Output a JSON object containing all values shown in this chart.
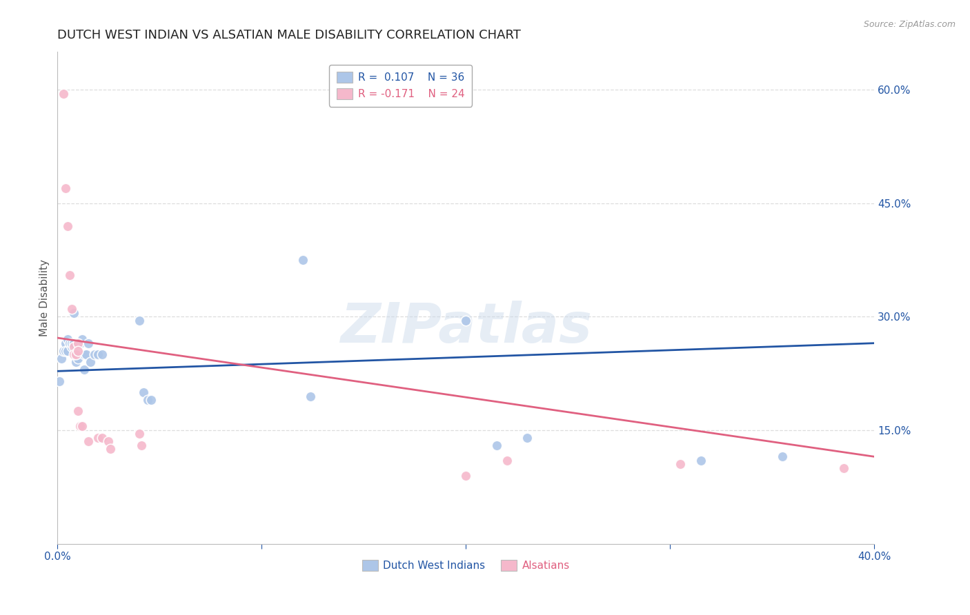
{
  "title": "DUTCH WEST INDIAN VS ALSATIAN MALE DISABILITY CORRELATION CHART",
  "source": "Source: ZipAtlas.com",
  "ylabel": "Male Disability",
  "xlim": [
    0.0,
    0.4
  ],
  "ylim": [
    0.0,
    0.65
  ],
  "xtick_positions": [
    0.0,
    0.1,
    0.2,
    0.3,
    0.4
  ],
  "xtick_labels": [
    "0.0%",
    "",
    "",
    "",
    "40.0%"
  ],
  "ytick_positions_right": [
    0.6,
    0.45,
    0.3,
    0.15
  ],
  "ytick_labels_right": [
    "60.0%",
    "45.0%",
    "30.0%",
    "15.0%"
  ],
  "watermark": "ZIPatlas",
  "blue_color": "#adc6e8",
  "pink_color": "#f5b8cb",
  "blue_line_color": "#2255a4",
  "pink_line_color": "#e06080",
  "blue_scatter": [
    [
      0.001,
      0.215
    ],
    [
      0.002,
      0.245
    ],
    [
      0.003,
      0.255
    ],
    [
      0.004,
      0.265
    ],
    [
      0.004,
      0.255
    ],
    [
      0.005,
      0.27
    ],
    [
      0.005,
      0.255
    ],
    [
      0.006,
      0.265
    ],
    [
      0.007,
      0.26
    ],
    [
      0.007,
      0.265
    ],
    [
      0.008,
      0.305
    ],
    [
      0.008,
      0.265
    ],
    [
      0.009,
      0.24
    ],
    [
      0.009,
      0.25
    ],
    [
      0.01,
      0.245
    ],
    [
      0.011,
      0.265
    ],
    [
      0.012,
      0.27
    ],
    [
      0.013,
      0.25
    ],
    [
      0.013,
      0.23
    ],
    [
      0.014,
      0.25
    ],
    [
      0.015,
      0.265
    ],
    [
      0.016,
      0.24
    ],
    [
      0.018,
      0.25
    ],
    [
      0.02,
      0.25
    ],
    [
      0.022,
      0.25
    ],
    [
      0.04,
      0.295
    ],
    [
      0.042,
      0.2
    ],
    [
      0.044,
      0.19
    ],
    [
      0.046,
      0.19
    ],
    [
      0.12,
      0.375
    ],
    [
      0.124,
      0.195
    ],
    [
      0.2,
      0.295
    ],
    [
      0.215,
      0.13
    ],
    [
      0.23,
      0.14
    ],
    [
      0.315,
      0.11
    ],
    [
      0.355,
      0.115
    ]
  ],
  "pink_scatter": [
    [
      0.003,
      0.595
    ],
    [
      0.004,
      0.47
    ],
    [
      0.005,
      0.42
    ],
    [
      0.006,
      0.355
    ],
    [
      0.007,
      0.31
    ],
    [
      0.008,
      0.26
    ],
    [
      0.008,
      0.25
    ],
    [
      0.009,
      0.25
    ],
    [
      0.01,
      0.265
    ],
    [
      0.01,
      0.255
    ],
    [
      0.01,
      0.175
    ],
    [
      0.011,
      0.155
    ],
    [
      0.012,
      0.155
    ],
    [
      0.015,
      0.135
    ],
    [
      0.02,
      0.14
    ],
    [
      0.022,
      0.14
    ],
    [
      0.025,
      0.135
    ],
    [
      0.026,
      0.125
    ],
    [
      0.04,
      0.145
    ],
    [
      0.041,
      0.13
    ],
    [
      0.2,
      0.09
    ],
    [
      0.22,
      0.11
    ],
    [
      0.305,
      0.105
    ],
    [
      0.385,
      0.1
    ]
  ],
  "blue_line_x": [
    0.0,
    0.4
  ],
  "blue_line_y": [
    0.228,
    0.265
  ],
  "pink_line_x": [
    0.0,
    0.4
  ],
  "pink_line_y": [
    0.272,
    0.115
  ],
  "grid_color": "#dddddd",
  "background_color": "#ffffff",
  "title_fontsize": 13,
  "axis_label_fontsize": 11,
  "tick_fontsize": 11,
  "legend_fontsize": 11,
  "marker_size": 110
}
